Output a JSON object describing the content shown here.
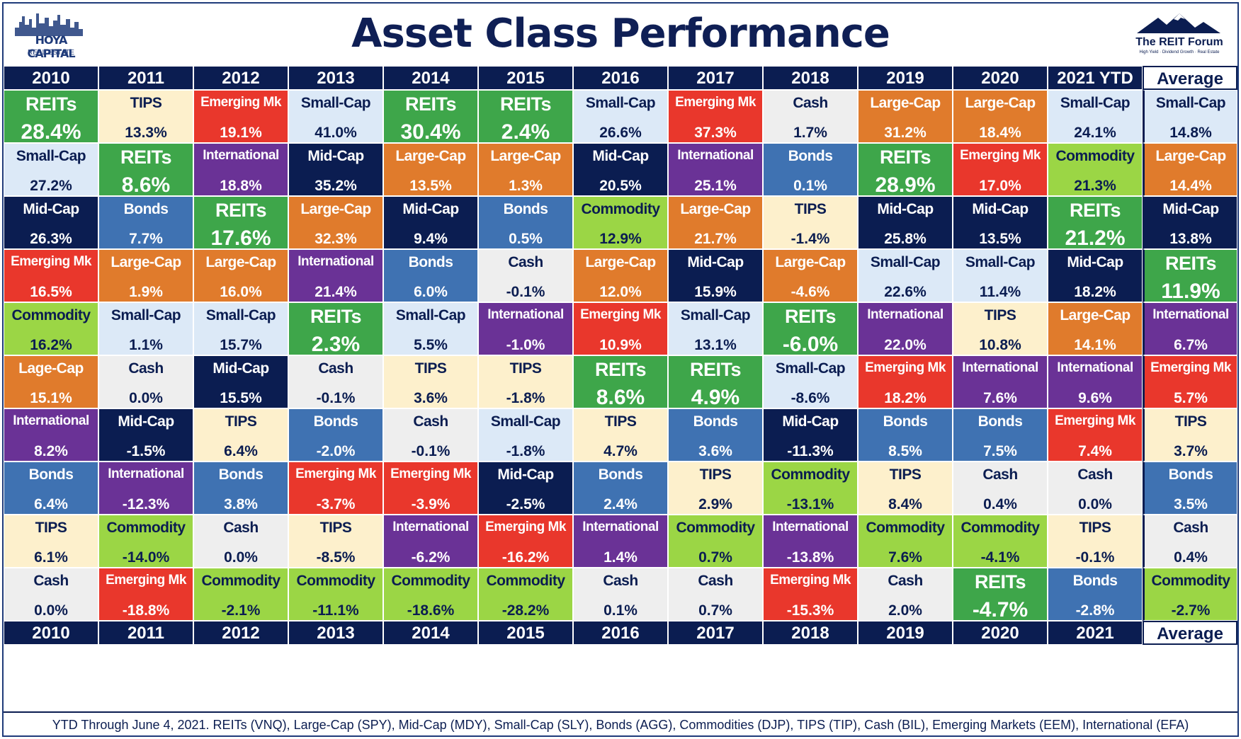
{
  "title": "Asset Class Performance",
  "logo_left": {
    "line1": "HOYA CAPITAL",
    "line2": "REAL ESTATE"
  },
  "logo_right": {
    "line1": "The REIT Forum",
    "line2": "High Yield · Dividend Growth · Real Estate"
  },
  "years_top": [
    "2010",
    "2011",
    "2012",
    "2013",
    "2014",
    "2015",
    "2016",
    "2017",
    "2018",
    "2019",
    "2020",
    "2021 YTD",
    "Average"
  ],
  "years_bottom": [
    "2010",
    "2011",
    "2012",
    "2013",
    "2014",
    "2015",
    "2016",
    "2017",
    "2018",
    "2019",
    "2020",
    "2021",
    "Average"
  ],
  "footnote": "YTD Through June 4, 2021. REITs (VNQ), Large-Cap (SPY), Mid-Cap (MDY), Small-Cap (SLY), Bonds (AGG), Commodities (DJP), TIPS (TIP), Cash (BIL), Emerging Markets (EEM), International (EFA)",
  "colors": {
    "REITs": "#3ea64a",
    "TIPS": "#fdf0cc",
    "Emerging Mk": "#e9372c",
    "Small-Cap": "#dce9f7",
    "Mid-Cap": "#0b1d51",
    "International": "#6a3296",
    "Large-Cap": "#e07b2c",
    "Bonds": "#3f72b2",
    "Commodity": "#9bd645",
    "Cash": "#eeeeee",
    "Lage-Cap": "#e07b2c"
  },
  "text_colors": {
    "REITs": "#ffffff",
    "TIPS": "#0b1d51",
    "Emerging Mk": "#ffffff",
    "Small-Cap": "#0b1d51",
    "Mid-Cap": "#ffffff",
    "International": "#ffffff",
    "Large-Cap": "#ffffff",
    "Bonds": "#ffffff",
    "Commodity": "#0b1d51",
    "Cash": "#0b1d51",
    "Lage-Cap": "#ffffff"
  },
  "chart_data": {
    "type": "table",
    "columns": [
      "2010",
      "2011",
      "2012",
      "2013",
      "2014",
      "2015",
      "2016",
      "2017",
      "2018",
      "2019",
      "2020",
      "2021 YTD",
      "Average"
    ],
    "rows": [
      [
        [
          "REITs",
          "28.4%"
        ],
        [
          "TIPS",
          "13.3%"
        ],
        [
          "Emerging Mk",
          "19.1%"
        ],
        [
          "Small-Cap",
          "41.0%"
        ],
        [
          "REITs",
          "30.4%"
        ],
        [
          "REITs",
          "2.4%"
        ],
        [
          "Small-Cap",
          "26.6%"
        ],
        [
          "Emerging Mk",
          "37.3%"
        ],
        [
          "Cash",
          "1.7%"
        ],
        [
          "Large-Cap",
          "31.2%"
        ],
        [
          "Large-Cap",
          "18.4%"
        ],
        [
          "Small-Cap",
          "24.1%"
        ],
        [
          "Small-Cap",
          "14.8%"
        ]
      ],
      [
        [
          "Small-Cap",
          "27.2%"
        ],
        [
          "REITs",
          "8.6%"
        ],
        [
          "International",
          "18.8%"
        ],
        [
          "Mid-Cap",
          "35.2%"
        ],
        [
          "Large-Cap",
          "13.5%"
        ],
        [
          "Large-Cap",
          "1.3%"
        ],
        [
          "Mid-Cap",
          "20.5%"
        ],
        [
          "International",
          "25.1%"
        ],
        [
          "Bonds",
          "0.1%"
        ],
        [
          "REITs",
          "28.9%"
        ],
        [
          "Emerging Mk",
          "17.0%"
        ],
        [
          "Commodity",
          "21.3%"
        ],
        [
          "Large-Cap",
          "14.4%"
        ]
      ],
      [
        [
          "Mid-Cap",
          "26.3%"
        ],
        [
          "Bonds",
          "7.7%"
        ],
        [
          "REITs",
          "17.6%"
        ],
        [
          "Large-Cap",
          "32.3%"
        ],
        [
          "Mid-Cap",
          "9.4%"
        ],
        [
          "Bonds",
          "0.5%"
        ],
        [
          "Commodity",
          "12.9%"
        ],
        [
          "Large-Cap",
          "21.7%"
        ],
        [
          "TIPS",
          "-1.4%"
        ],
        [
          "Mid-Cap",
          "25.8%"
        ],
        [
          "Mid-Cap",
          "13.5%"
        ],
        [
          "REITs",
          "21.2%"
        ],
        [
          "Mid-Cap",
          "13.8%"
        ]
      ],
      [
        [
          "Emerging Mk",
          "16.5%"
        ],
        [
          "Large-Cap",
          "1.9%"
        ],
        [
          "Large-Cap",
          "16.0%"
        ],
        [
          "International",
          "21.4%"
        ],
        [
          "Bonds",
          "6.0%"
        ],
        [
          "Cash",
          "-0.1%"
        ],
        [
          "Large-Cap",
          "12.0%"
        ],
        [
          "Mid-Cap",
          "15.9%"
        ],
        [
          "Large-Cap",
          "-4.6%"
        ],
        [
          "Small-Cap",
          "22.6%"
        ],
        [
          "Small-Cap",
          "11.4%"
        ],
        [
          "Mid-Cap",
          "18.2%"
        ],
        [
          "REITs",
          "11.9%"
        ]
      ],
      [
        [
          "Commodity",
          "16.2%"
        ],
        [
          "Small-Cap",
          "1.1%"
        ],
        [
          "Small-Cap",
          "15.7%"
        ],
        [
          "REITs",
          "2.3%"
        ],
        [
          "Small-Cap",
          "5.5%"
        ],
        [
          "International",
          "-1.0%"
        ],
        [
          "Emerging Mk",
          "10.9%"
        ],
        [
          "Small-Cap",
          "13.1%"
        ],
        [
          "REITs",
          "-6.0%"
        ],
        [
          "International",
          "22.0%"
        ],
        [
          "TIPS",
          "10.8%"
        ],
        [
          "Large-Cap",
          "14.1%"
        ],
        [
          "International",
          "6.7%"
        ]
      ],
      [
        [
          "Lage-Cap",
          "15.1%"
        ],
        [
          "Cash",
          "0.0%"
        ],
        [
          "Mid-Cap",
          "15.5%"
        ],
        [
          "Cash",
          "-0.1%"
        ],
        [
          "TIPS",
          "3.6%"
        ],
        [
          "TIPS",
          "-1.8%"
        ],
        [
          "REITs",
          "8.6%"
        ],
        [
          "REITs",
          "4.9%"
        ],
        [
          "Small-Cap",
          "-8.6%"
        ],
        [
          "Emerging Mk",
          "18.2%"
        ],
        [
          "International",
          "7.6%"
        ],
        [
          "International",
          "9.6%"
        ],
        [
          "Emerging Mk",
          "5.7%"
        ]
      ],
      [
        [
          "International",
          "8.2%"
        ],
        [
          "Mid-Cap",
          "-1.5%"
        ],
        [
          "TIPS",
          "6.4%"
        ],
        [
          "Bonds",
          "-2.0%"
        ],
        [
          "Cash",
          "-0.1%"
        ],
        [
          "Small-Cap",
          "-1.8%"
        ],
        [
          "TIPS",
          "4.7%"
        ],
        [
          "Bonds",
          "3.6%"
        ],
        [
          "Mid-Cap",
          "-11.3%"
        ],
        [
          "Bonds",
          "8.5%"
        ],
        [
          "Bonds",
          "7.5%"
        ],
        [
          "Emerging Mk",
          "7.4%"
        ],
        [
          "TIPS",
          "3.7%"
        ]
      ],
      [
        [
          "Bonds",
          "6.4%"
        ],
        [
          "International",
          "-12.3%"
        ],
        [
          "Bonds",
          "3.8%"
        ],
        [
          "Emerging Mk",
          "-3.7%"
        ],
        [
          "Emerging Mk",
          "-3.9%"
        ],
        [
          "Mid-Cap",
          "-2.5%"
        ],
        [
          "Bonds",
          "2.4%"
        ],
        [
          "TIPS",
          "2.9%"
        ],
        [
          "Commodity",
          "-13.1%"
        ],
        [
          "TIPS",
          "8.4%"
        ],
        [
          "Cash",
          "0.4%"
        ],
        [
          "Cash",
          "0.0%"
        ],
        [
          "Bonds",
          "3.5%"
        ]
      ],
      [
        [
          "TIPS",
          "6.1%"
        ],
        [
          "Commodity",
          "-14.0%"
        ],
        [
          "Cash",
          "0.0%"
        ],
        [
          "TIPS",
          "-8.5%"
        ],
        [
          "International",
          "-6.2%"
        ],
        [
          "Emerging Mk",
          "-16.2%"
        ],
        [
          "International",
          "1.4%"
        ],
        [
          "Commodity",
          "0.7%"
        ],
        [
          "International",
          "-13.8%"
        ],
        [
          "Commodity",
          "7.6%"
        ],
        [
          "Commodity",
          "-4.1%"
        ],
        [
          "TIPS",
          "-0.1%"
        ],
        [
          "Cash",
          "0.4%"
        ]
      ],
      [
        [
          "Cash",
          "0.0%"
        ],
        [
          "Emerging Mk",
          "-18.8%"
        ],
        [
          "Commodity",
          "-2.1%"
        ],
        [
          "Commodity",
          "-11.1%"
        ],
        [
          "Commodity",
          "-18.6%"
        ],
        [
          "Commodity",
          "-28.2%"
        ],
        [
          "Cash",
          "0.1%"
        ],
        [
          "Cash",
          "0.7%"
        ],
        [
          "Emerging Mk",
          "-15.3%"
        ],
        [
          "Cash",
          "2.0%"
        ],
        [
          "REITs",
          "-4.7%"
        ],
        [
          "Bonds",
          "-2.8%"
        ],
        [
          "Commodity",
          "-2.7%"
        ]
      ]
    ]
  }
}
